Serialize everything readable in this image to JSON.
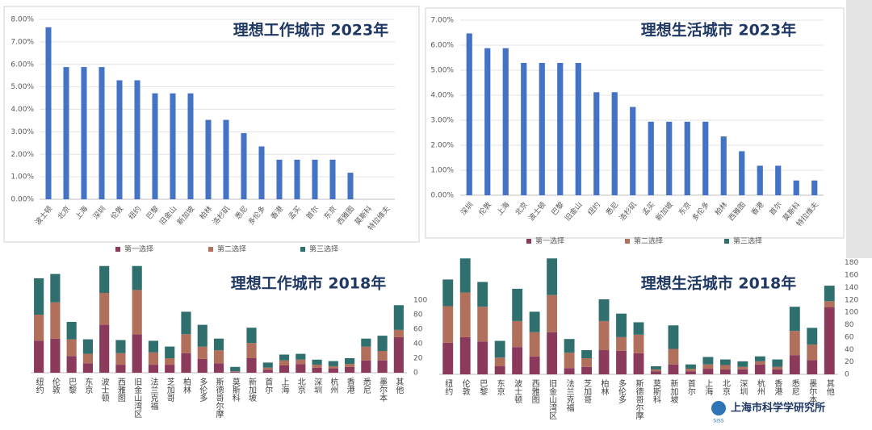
{
  "chart_data": [
    {
      "type": "bar",
      "title": "理想工作城市 2023年",
      "categories": [
        "波士顿",
        "北京",
        "上海",
        "深圳",
        "伦敦",
        "纽约",
        "巴黎",
        "旧金山",
        "新加坡",
        "柏林",
        "洛杉矶",
        "悉尼",
        "多伦多",
        "香港",
        "孟买",
        "首尔",
        "东京",
        "西雅图",
        "莫斯科",
        "特拉维夫"
      ],
      "values": [
        7.65,
        5.88,
        5.88,
        5.88,
        5.29,
        5.29,
        4.71,
        4.71,
        4.71,
        3.53,
        3.53,
        2.94,
        2.35,
        1.76,
        1.76,
        1.76,
        1.76,
        1.18,
        0,
        0
      ],
      "color": "#4472c4",
      "ylim": [
        0,
        8
      ],
      "yticks": [
        {
          "value": 0,
          "label": "0.00%"
        },
        {
          "value": 1,
          "label": "1.00%"
        },
        {
          "value": 2,
          "label": "2.00%"
        },
        {
          "value": 3,
          "label": "3.00%"
        },
        {
          "value": 4,
          "label": "4.00%"
        },
        {
          "value": 5,
          "label": "5.00%"
        },
        {
          "value": 6,
          "label": "6.00%"
        },
        {
          "value": 7,
          "label": "7.00%"
        },
        {
          "value": 8,
          "label": "8.00%"
        }
      ],
      "grid": true
    },
    {
      "type": "bar",
      "title": "理想生活城市 2023年",
      "categories": [
        "深圳",
        "伦敦",
        "上海",
        "北京",
        "波士顿",
        "巴黎",
        "旧金山",
        "纽约",
        "悉尼",
        "洛杉矶",
        "孟买",
        "新加坡",
        "东京",
        "多伦多",
        "柏林",
        "西雅图",
        "香港",
        "首尔",
        "莫斯科",
        "特拉维夫"
      ],
      "values": [
        6.47,
        5.88,
        5.88,
        5.29,
        5.29,
        5.29,
        5.29,
        4.12,
        4.12,
        3.53,
        2.94,
        2.94,
        2.94,
        2.94,
        2.35,
        1.76,
        1.18,
        1.18,
        0.59,
        0.59
      ],
      "color": "#4472c4",
      "ylim": [
        0,
        7
      ],
      "yticks": [
        {
          "value": 0,
          "label": "0.00%"
        },
        {
          "value": 1,
          "label": "1.00%"
        },
        {
          "value": 2,
          "label": "2.00%"
        },
        {
          "value": 3,
          "label": "3.00%"
        },
        {
          "value": 4,
          "label": "4.00%"
        },
        {
          "value": 5,
          "label": "5.00%"
        },
        {
          "value": 6,
          "label": "6.00%"
        },
        {
          "value": 7,
          "label": "7.00%"
        }
      ],
      "grid": true
    },
    {
      "type": "stacked_bar",
      "title": "理想工作城市 2018年",
      "categories": [
        "纽约",
        "伦敦",
        "巴黎",
        "东京",
        "波士顿",
        "西雅图",
        "旧金山湾区",
        "法兰克福",
        "芝加哥",
        "柏林",
        "多伦多",
        "斯德哥尔摩",
        "莫斯科",
        "新加坡",
        "首尔",
        "上海",
        "北京",
        "深圳",
        "杭州",
        "香港",
        "悉尼",
        "墨尔本",
        "其他"
      ],
      "series": [
        {
          "name": "第一选择",
          "color": "#8b3a5c",
          "values": [
            44,
            47,
            23,
            13,
            66,
            11,
            53,
            11,
            11,
            27,
            19,
            13,
            1,
            20,
            4,
            10,
            12,
            7,
            6,
            8,
            17,
            17,
            49
          ]
        },
        {
          "name": "第二选择",
          "color": "#b0705c",
          "values": [
            36,
            50,
            23,
            13,
            44,
            16,
            61,
            17,
            9,
            26,
            17,
            18,
            1,
            21,
            3,
            7,
            6,
            4,
            3,
            4,
            19,
            13,
            10
          ]
        },
        {
          "name": "第三选择",
          "color": "#2f6f6e",
          "values": [
            50,
            39,
            24,
            20,
            37,
            18,
            33,
            16,
            16,
            31,
            30,
            16,
            6,
            21,
            7,
            8,
            8,
            7,
            7,
            8,
            11,
            21,
            34
          ]
        }
      ],
      "ylim": [
        0,
        160
      ],
      "yticks": [
        0,
        20,
        40,
        60,
        80,
        100
      ],
      "grid": false
    },
    {
      "type": "stacked_bar",
      "title": "理想生活城市 2018年",
      "categories": [
        "纽约",
        "伦敦",
        "巴黎",
        "东京",
        "波士顿",
        "西雅图",
        "旧金山湾区",
        "法兰克福",
        "芝加哥",
        "柏林",
        "多伦多",
        "斯德哥尔摩",
        "莫斯科",
        "新加坡",
        "首尔",
        "上海",
        "北京",
        "深圳",
        "杭州",
        "香港",
        "悉尼",
        "墨尔本",
        "其他"
      ],
      "series": [
        {
          "name": "第一选择",
          "color": "#8b3a5c",
          "values": [
            51,
            60,
            53,
            13,
            44,
            29,
            68,
            10,
            12,
            39,
            38,
            34,
            5,
            16,
            5,
            9,
            8,
            8,
            16,
            8,
            31,
            23,
            108
          ]
        },
        {
          "name": "第二选择",
          "color": "#b0705c",
          "values": [
            59,
            72,
            56,
            14,
            42,
            39,
            60,
            25,
            14,
            47,
            22,
            30,
            3,
            25,
            4,
            7,
            7,
            4,
            5,
            4,
            39,
            25,
            10
          ]
        },
        {
          "name": "第三选择",
          "color": "#2f6f6e",
          "values": [
            43,
            55,
            40,
            27,
            52,
            33,
            59,
            22,
            13,
            35,
            38,
            20,
            5,
            38,
            7,
            12,
            9,
            9,
            8,
            12,
            39,
            27,
            25
          ]
        }
      ],
      "ylim": [
        0,
        190
      ],
      "yticks": [
        0,
        20,
        40,
        60,
        80,
        100,
        120,
        140,
        160,
        180
      ],
      "grid": false
    }
  ],
  "watermark": {
    "abbr": "SISS",
    "name": "上海市科学学研究所"
  }
}
